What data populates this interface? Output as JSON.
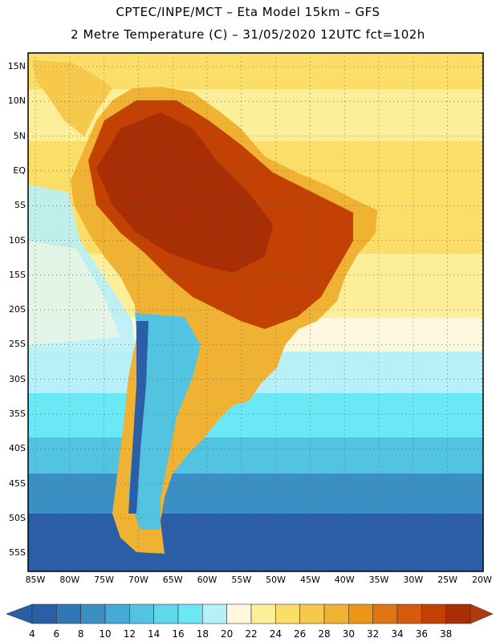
{
  "header": {
    "line1": "CPTEC/INPE/MCT –  Eta Model 15km – GFS",
    "line2": "2 Metre Temperature (C) – 31/05/2020 12UTC fct=102h"
  },
  "map": {
    "lat_labels": [
      "15N",
      "10N",
      "5N",
      "EQ",
      "5S",
      "10S",
      "15S",
      "20S",
      "25S",
      "30S",
      "35S",
      "40S",
      "45S",
      "50S",
      "55S"
    ],
    "lon_labels": [
      "85W",
      "80W",
      "75W",
      "70W",
      "65W",
      "60W",
      "55W",
      "50W",
      "45W",
      "40W",
      "35W",
      "30W",
      "25W",
      "20W"
    ]
  },
  "colorbar": {
    "labels": [
      "4",
      "6",
      "8",
      "10",
      "12",
      "14",
      "16",
      "18",
      "20",
      "22",
      "24",
      "26",
      "28",
      "30",
      "32",
      "34",
      "36",
      "38"
    ],
    "colors": [
      "#2a5fa8",
      "#3277b5",
      "#3a8fc5",
      "#47a9d6",
      "#52c3e0",
      "#5fd7ec",
      "#6ae8f5",
      "#b8f0fa",
      "#fdf7de",
      "#fdef9a",
      "#fbde67",
      "#f6c94d",
      "#f0b232",
      "#ea9616",
      "#e07412",
      "#d65a0d",
      "#c44104",
      "#a82e05"
    ],
    "low_color": "#2a5fa8",
    "high_color": "#b03a10"
  }
}
